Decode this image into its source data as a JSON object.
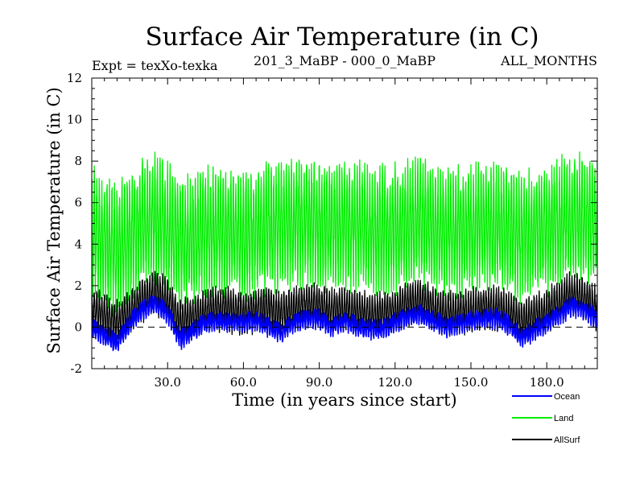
{
  "chart_data": {
    "type": "line",
    "title": "Surface Air Temperature (in C)",
    "subtitle_left": "Expt = texXo-texka",
    "subtitle_center": "201_3_MaBP - 000_0_MaBP",
    "subtitle_right": "ALL_MONTHS",
    "xlabel": "Time (in years since start)",
    "ylabel": "Surface Air Temperature (in C)",
    "xlim": [
      0,
      200
    ],
    "ylim": [
      -2,
      12
    ],
    "xticks": [
      30,
      60,
      90,
      120,
      150,
      180
    ],
    "xtick_labels": [
      "30.0",
      "60.0",
      "90.0",
      "120.0",
      "150.0",
      "180.0"
    ],
    "yticks": [
      -2,
      0,
      2,
      4,
      6,
      8,
      10,
      12
    ],
    "ytick_labels": [
      "-2",
      "0",
      "2",
      "4",
      "6",
      "8",
      "10",
      "12"
    ],
    "zero_line": true,
    "samples_per_year": 12,
    "series": [
      {
        "name": "Land",
        "color": "#00ee00",
        "seasonal_amplitude": 2.6,
        "noise": 0.7,
        "x": [
          0,
          5,
          10,
          15,
          20,
          25,
          30,
          35,
          40,
          45,
          50,
          55,
          60,
          65,
          70,
          75,
          80,
          85,
          90,
          95,
          100,
          105,
          110,
          115,
          120,
          125,
          130,
          135,
          140,
          145,
          150,
          155,
          160,
          165,
          170,
          175,
          180,
          185,
          190,
          195,
          200
        ],
        "y": [
          4.6,
          4.0,
          3.7,
          4.4,
          4.9,
          5.2,
          4.8,
          4.1,
          4.2,
          4.7,
          4.8,
          4.6,
          4.5,
          4.6,
          4.8,
          4.9,
          5.0,
          5.1,
          4.9,
          4.9,
          4.9,
          4.8,
          4.6,
          4.6,
          4.7,
          4.9,
          5.1,
          4.8,
          4.5,
          4.6,
          4.7,
          4.8,
          4.9,
          4.6,
          4.3,
          4.5,
          4.7,
          5.0,
          5.3,
          5.2,
          4.9
        ]
      },
      {
        "name": "AllSurf",
        "color": "#000000",
        "seasonal_amplitude": 0.9,
        "noise": 0.25,
        "x": [
          0,
          5,
          10,
          15,
          20,
          25,
          30,
          35,
          40,
          45,
          50,
          55,
          60,
          65,
          70,
          75,
          80,
          85,
          90,
          95,
          100,
          105,
          110,
          115,
          120,
          125,
          130,
          135,
          140,
          145,
          150,
          155,
          160,
          165,
          170,
          175,
          180,
          185,
          190,
          195,
          200
        ],
        "y": [
          0.9,
          0.5,
          0.2,
          0.7,
          1.3,
          1.7,
          1.3,
          0.3,
          0.5,
          0.8,
          0.9,
          0.8,
          0.7,
          0.8,
          0.9,
          0.6,
          0.9,
          1.1,
          1.0,
          0.8,
          0.9,
          0.7,
          0.6,
          0.6,
          0.8,
          1.1,
          1.3,
          0.9,
          0.6,
          0.7,
          0.8,
          0.9,
          0.9,
          0.7,
          0.3,
          0.5,
          0.8,
          1.2,
          1.6,
          1.4,
          0.9
        ]
      },
      {
        "name": "Ocean",
        "color": "#0000ff",
        "seasonal_amplitude": 0.35,
        "noise": 0.18,
        "x": [
          0,
          5,
          10,
          15,
          20,
          25,
          30,
          35,
          40,
          45,
          50,
          55,
          60,
          65,
          70,
          75,
          80,
          85,
          90,
          95,
          100,
          105,
          110,
          115,
          120,
          125,
          130,
          135,
          140,
          145,
          150,
          155,
          160,
          165,
          170,
          175,
          180,
          185,
          190,
          195,
          200
        ],
        "y": [
          -0.1,
          -0.4,
          -0.8,
          0.2,
          0.8,
          1.1,
          0.7,
          -0.6,
          -0.2,
          0.2,
          0.3,
          0.2,
          0.2,
          0.3,
          0.0,
          -0.3,
          0.2,
          0.4,
          0.4,
          0.0,
          0.3,
          0.0,
          -0.1,
          -0.1,
          0.2,
          0.5,
          0.6,
          0.3,
          0.0,
          0.1,
          0.3,
          0.4,
          0.4,
          0.1,
          -0.5,
          -0.2,
          0.2,
          0.6,
          1.0,
          0.8,
          0.4
        ]
      }
    ],
    "legend": [
      {
        "name": "Ocean",
        "color": "#0000ff"
      },
      {
        "name": "Land",
        "color": "#00ee00"
      },
      {
        "name": "AllSurf",
        "color": "#000000"
      }
    ],
    "legend_position": "bottom-right"
  }
}
